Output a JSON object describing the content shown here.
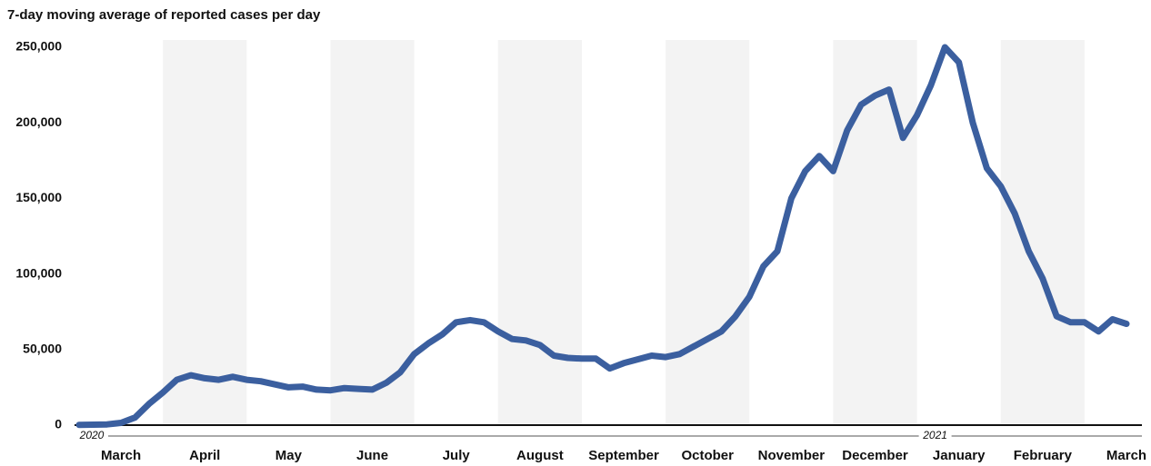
{
  "chart_data": {
    "type": "line",
    "title": "7-day moving average of reported cases per day",
    "categories": [
      null,
      null,
      null,
      "March",
      null,
      null,
      null,
      null,
      null,
      "April",
      null,
      null,
      null,
      null,
      null,
      "May",
      null,
      null,
      null,
      null,
      null,
      "June",
      null,
      null,
      null,
      null,
      null,
      "July",
      null,
      null,
      null,
      null,
      null,
      "August",
      null,
      null,
      null,
      null,
      null,
      "September",
      null,
      null,
      null,
      null,
      null,
      "October",
      null,
      null,
      null,
      null,
      null,
      "November",
      null,
      null,
      null,
      null,
      null,
      "December",
      null,
      null,
      null,
      null,
      null,
      "January",
      null,
      null,
      null,
      null,
      null,
      "February",
      null,
      null,
      null,
      null,
      null,
      "March"
    ],
    "years": [
      "2020",
      "2021"
    ],
    "series": [
      {
        "name": "7-day moving average",
        "color": "#3b5f9f",
        "values": [
          200,
          300,
          500,
          1500,
          5000,
          14000,
          21600,
          30000,
          33000,
          31000,
          30000,
          32000,
          30000,
          29000,
          27000,
          25000,
          25500,
          23500,
          23000,
          24500,
          24000,
          23500,
          28000,
          35000,
          47000,
          54000,
          60000,
          68000,
          69500,
          68000,
          62000,
          57000,
          56000,
          53000,
          46000,
          44500,
          44000,
          44000,
          37500,
          41000,
          43500,
          46000,
          45000,
          47000,
          52000,
          57000,
          62000,
          72000,
          85000,
          105000,
          115000,
          150000,
          168000,
          178000,
          168000,
          195000,
          212000,
          218000,
          222000,
          190000,
          205000,
          225000,
          250000,
          240000,
          200000,
          170000,
          158000,
          140000,
          115000,
          97000,
          72000,
          68000,
          68000,
          62000,
          70000,
          67000
        ]
      }
    ],
    "ylim": [
      0,
      250000
    ],
    "yticks": [
      0,
      {
        "value": 50000,
        "label": "50,000"
      },
      {
        "value": 100000,
        "label": "100,000"
      },
      {
        "value": 150000,
        "label": "150,000"
      },
      {
        "value": 200000,
        "label": "200,000"
      },
      {
        "value": 250000,
        "label": "250,000"
      }
    ]
  }
}
